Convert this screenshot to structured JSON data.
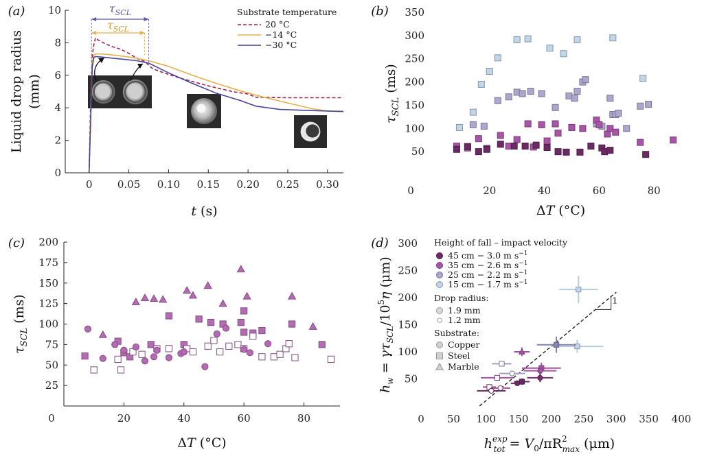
{
  "chart_data": [
    {
      "panel": "(a)",
      "type": "line",
      "xlabel": "t (s)",
      "ylabel_line1": "Liquid drop radius",
      "ylabel_line2": "(mm)",
      "xlim": [
        -0.03,
        0.32
      ],
      "ylim": [
        0,
        10
      ],
      "xticks": [
        "0",
        "0.05",
        "0.10",
        "0.15",
        "0.20",
        "0.25",
        "0.30"
      ],
      "xtick_values": [
        0,
        0.05,
        0.1,
        0.15,
        0.2,
        0.25,
        0.3
      ],
      "yticks": [
        0,
        2,
        4,
        6,
        8,
        10
      ],
      "legend_title": "Substrate temperature",
      "annotation_tau_outer": "τSCL",
      "annotation_tau_inner": "τSCL",
      "series": [
        {
          "name": "20 °C",
          "color": "#a0204f",
          "dash": true,
          "x": [
            0,
            0.002,
            0.004,
            0.006,
            0.008,
            0.012,
            0.02,
            0.03,
            0.04,
            0.05,
            0.06,
            0.07,
            0.08,
            0.1,
            0.12,
            0.15,
            0.18,
            0.2,
            0.21,
            0.25,
            0.3,
            0.32
          ],
          "y": [
            0,
            4.5,
            7.2,
            7.9,
            8.3,
            8.15,
            7.95,
            7.75,
            7.6,
            7.35,
            7.05,
            6.85,
            6.4,
            6.05,
            5.75,
            5.35,
            5.0,
            4.85,
            4.65,
            4.62,
            4.62,
            4.62
          ]
        },
        {
          "name": "−14 °C",
          "color": "#e3b04a",
          "dash": false,
          "x": [
            0,
            0.002,
            0.004,
            0.006,
            0.008,
            0.02,
            0.04,
            0.06,
            0.075,
            0.1,
            0.13,
            0.16,
            0.19,
            0.22,
            0.25,
            0.28,
            0.3,
            0.32
          ],
          "y": [
            0,
            3.5,
            6.8,
            7.25,
            7.32,
            7.3,
            7.2,
            7.05,
            6.9,
            6.55,
            6.0,
            5.5,
            5.05,
            4.65,
            4.3,
            3.95,
            3.8,
            3.75
          ]
        },
        {
          "name": "−30 °C",
          "color": "#44449a",
          "dash": false,
          "x": [
            0,
            0.002,
            0.004,
            0.006,
            0.008,
            0.02,
            0.04,
            0.06,
            0.075,
            0.1,
            0.13,
            0.16,
            0.19,
            0.21,
            0.24,
            0.27,
            0.3,
            0.32
          ],
          "y": [
            0,
            3.2,
            6.5,
            7.1,
            7.15,
            7.1,
            7.0,
            6.9,
            6.75,
            6.15,
            5.5,
            4.9,
            4.45,
            4.1,
            3.9,
            3.85,
            3.8,
            3.78
          ]
        }
      ]
    },
    {
      "panel": "(b)",
      "type": "scatter",
      "xlabel": "ΔT (°C)",
      "ylabel": "τSCL (ms)",
      "xlim": [
        0,
        92
      ],
      "ylim": [
        0,
        350
      ],
      "xticks": [
        20,
        40,
        60,
        80
      ],
      "yticks": [
        50,
        100,
        150,
        200,
        250,
        300,
        350
      ],
      "origin_label": "0",
      "series": [
        {
          "name": "15 cm",
          "color": "#c2d6ea",
          "points": [
            [
              9,
              102
            ],
            [
              14,
              135
            ],
            [
              17,
              195
            ],
            [
              20,
              223
            ],
            [
              23,
              252
            ],
            [
              30,
              291
            ],
            [
              34,
              293
            ],
            [
              42,
              273
            ],
            [
              47,
              261
            ],
            [
              52,
              291
            ],
            [
              65,
              295
            ],
            [
              76,
              208
            ]
          ]
        },
        {
          "name": "25 cm",
          "color": "#ada7cf",
          "points": [
            [
              14,
              108
            ],
            [
              18,
              105
            ],
            [
              23,
              160
            ],
            [
              27,
              168
            ],
            [
              30,
              178
            ],
            [
              32,
              175
            ],
            [
              35,
              180
            ],
            [
              39,
              175
            ],
            [
              44,
              145
            ],
            [
              49,
              170
            ],
            [
              51,
              165
            ],
            [
              52,
              180
            ],
            [
              54,
              200
            ],
            [
              55,
              205
            ],
            [
              59,
              110
            ],
            [
              61,
              105
            ],
            [
              64,
              165
            ],
            [
              65,
              130
            ],
            [
              66,
              130
            ],
            [
              67,
              133
            ],
            [
              70,
              100
            ],
            [
              75,
              148
            ],
            [
              78,
              152
            ]
          ]
        },
        {
          "name": "35 cm",
          "color": "#a855a8",
          "points": [
            [
              8,
              62
            ],
            [
              12,
              58
            ],
            [
              16,
              78
            ],
            [
              19,
              57
            ],
            [
              24,
              85
            ],
            [
              27,
              62
            ],
            [
              30,
              76
            ],
            [
              34,
              110
            ],
            [
              36,
              60
            ],
            [
              39,
              108
            ],
            [
              41,
              73
            ],
            [
              44,
              110
            ],
            [
              45,
              90
            ],
            [
              50,
              102
            ],
            [
              54,
              100
            ],
            [
              59,
              118
            ],
            [
              60,
              108
            ],
            [
              63,
              88
            ],
            [
              64,
              100
            ],
            [
              66,
              92
            ],
            [
              75,
              70
            ],
            [
              87,
              75
            ]
          ]
        },
        {
          "name": "45 cm",
          "color": "#6b2a63",
          "points": [
            [
              8,
              55
            ],
            [
              12,
              61
            ],
            [
              16,
              50
            ],
            [
              19,
              55
            ],
            [
              24,
              66
            ],
            [
              29,
              62
            ],
            [
              33,
              62
            ],
            [
              37,
              64
            ],
            [
              41,
              59
            ],
            [
              45,
              50
            ],
            [
              48,
              49
            ],
            [
              53,
              49
            ],
            [
              57,
              62
            ],
            [
              61,
              58
            ],
            [
              62,
              50
            ],
            [
              64,
              53
            ],
            [
              77,
              44
            ]
          ]
        }
      ]
    },
    {
      "panel": "(c)",
      "type": "scatter",
      "xlabel": "ΔT (°C)",
      "ylabel": "τSCL (ms)",
      "xlim": [
        0,
        92
      ],
      "ylim": [
        0,
        200
      ],
      "xticks": [
        20,
        40,
        60,
        80
      ],
      "yticks": [
        25,
        50,
        75,
        100,
        125,
        150,
        175,
        200
      ],
      "origin_label": "0",
      "color": "#b46bb4",
      "series": [
        {
          "name": "Marble",
          "shape": "triangle",
          "filled": true,
          "points": [
            [
              13,
              87
            ],
            [
              24,
              127
            ],
            [
              27,
              132
            ],
            [
              30,
              131
            ],
            [
              33,
              130
            ],
            [
              41,
              141
            ],
            [
              43,
              135
            ],
            [
              48,
              147
            ],
            [
              53,
              125
            ],
            [
              59,
              167
            ],
            [
              61,
              134
            ],
            [
              76,
              134
            ],
            [
              83,
              97
            ]
          ]
        },
        {
          "name": "Steel filled",
          "shape": "square",
          "filled": true,
          "points": [
            [
              7,
              61
            ],
            [
              18,
              79
            ],
            [
              20,
              65
            ],
            [
              22,
              60
            ],
            [
              29,
              75
            ],
            [
              35,
              110
            ],
            [
              40,
              75
            ],
            [
              45,
              106
            ],
            [
              49,
              102
            ],
            [
              53,
              100
            ],
            [
              59,
              102
            ],
            [
              60,
              116
            ],
            [
              60,
              90
            ],
            [
              63,
              89
            ],
            [
              66,
              92
            ],
            [
              76,
              100
            ],
            [
              86,
              75
            ]
          ]
        },
        {
          "name": "Steel open",
          "shape": "square",
          "filled": false,
          "points": [
            [
              10,
              44
            ],
            [
              18,
              57
            ],
            [
              19,
              44
            ],
            [
              23,
              66
            ],
            [
              26,
              63
            ],
            [
              31,
              70
            ],
            [
              35,
              70
            ],
            [
              41,
              70
            ],
            [
              43,
              66
            ],
            [
              48,
              73
            ],
            [
              50,
              80
            ],
            [
              52,
              66
            ],
            [
              55,
              73
            ],
            [
              58,
              75
            ],
            [
              60,
              70
            ],
            [
              63,
              85
            ],
            [
              66,
              60
            ],
            [
              70,
              60
            ],
            [
              72,
              63
            ],
            [
              74,
              70
            ],
            [
              75,
              76
            ],
            [
              77,
              59
            ],
            [
              89,
              57
            ]
          ]
        },
        {
          "name": "Copper",
          "shape": "circle",
          "filled": true,
          "points": [
            [
              8,
              94
            ],
            [
              13,
              58
            ],
            [
              17,
              75
            ],
            [
              20,
              68
            ],
            [
              24,
              72
            ],
            [
              27,
              55
            ],
            [
              30,
              60
            ],
            [
              31,
              68
            ],
            [
              35,
              59
            ],
            [
              39,
              64
            ],
            [
              40,
              66
            ],
            [
              47,
              48
            ],
            [
              51,
              88
            ],
            [
              54,
              95
            ],
            [
              60,
              69
            ],
            [
              62,
              65
            ],
            [
              68,
              76
            ]
          ]
        }
      ]
    },
    {
      "panel": "(d)",
      "type": "scatter",
      "xlabel": "h_tot^exp = V0/πR²max (μm)",
      "ylabel": "h_w = γτSCL/10⁵η (μm)",
      "xlim": [
        0,
        400
      ],
      "ylim": [
        0,
        300
      ],
      "xticks": [
        0,
        50,
        100,
        150,
        200,
        250,
        300,
        350,
        400
      ],
      "yticks": [
        50,
        100,
        150,
        200,
        250,
        300
      ],
      "legend_title": "Height of fall – impact velocity",
      "legend": [
        {
          "label": "45 cm − 3.0 m s",
          "sup": "−1",
          "color": "#6b2a63"
        },
        {
          "label": "35 cm − 2.6 m s",
          "sup": "−1",
          "color": "#a855a8"
        },
        {
          "label": "25 cm − 2.2 m s",
          "sup": "−1",
          "color": "#ada7cf"
        },
        {
          "label": "15 cm − 1.7 m s",
          "sup": "−1",
          "color": "#c2d6ea"
        }
      ],
      "radius_title": "Drop radius:",
      "radius_items": [
        "1.9 mm",
        "1.2 mm"
      ],
      "substrate_title": "Substrate:",
      "substrate_items": [
        "Copper",
        "Steel",
        "Marble"
      ],
      "slope_label": "1",
      "points": [
        {
          "x": 242,
          "y": 215,
          "xerr": 30,
          "yerr": 25,
          "color": "#c2d6ea",
          "shape": "square",
          "filled": true
        },
        {
          "x": 240,
          "y": 110,
          "xerr": 40,
          "yerr": 12,
          "color": "#c2d6ea",
          "shape": "square",
          "filled": true
        },
        {
          "x": 208,
          "y": 113,
          "xerr": 30,
          "yerr": 15,
          "color": "#8a85b8",
          "shape": "square",
          "filled": true
        },
        {
          "x": 185,
          "y": 70,
          "xerr": 30,
          "yerr": 10,
          "color": "#a855a8",
          "shape": "square",
          "filled": true
        },
        {
          "x": 183,
          "y": 65,
          "xerr": 25,
          "yerr": 10,
          "color": "#a855a8",
          "shape": "circle",
          "filled": true
        },
        {
          "x": 155,
          "y": 100,
          "xerr": 12,
          "yerr": 8,
          "color": "#a855a8",
          "shape": "triangle",
          "filled": true
        },
        {
          "x": 183,
          "y": 52,
          "xerr": 20,
          "yerr": 8,
          "color": "#7a3070",
          "shape": "circle",
          "filled": true
        },
        {
          "x": 155,
          "y": 45,
          "xerr": 12,
          "yerr": 6,
          "color": "#6b2a63",
          "shape": "square",
          "filled": true
        },
        {
          "x": 148,
          "y": 42,
          "xerr": 10,
          "yerr": 5,
          "color": "#6b2a63",
          "shape": "circle",
          "filled": true
        },
        {
          "x": 124,
          "y": 78,
          "xerr": 15,
          "yerr": 5,
          "color": "#ada7cf",
          "shape": "square",
          "filled": false
        },
        {
          "x": 140,
          "y": 60,
          "xerr": 20,
          "yerr": 5,
          "color": "#ada7cf",
          "shape": "circle",
          "filled": false
        },
        {
          "x": 117,
          "y": 52,
          "xerr": 25,
          "yerr": 5,
          "color": "#a855a8",
          "shape": "square",
          "filled": false
        },
        {
          "x": 105,
          "y": 35,
          "xerr": 10,
          "yerr": 4,
          "color": "#a855a8",
          "shape": "square",
          "filled": false
        },
        {
          "x": 122,
          "y": 33,
          "xerr": 15,
          "yerr": 4,
          "color": "#a855a8",
          "shape": "circle",
          "filled": false
        },
        {
          "x": 108,
          "y": 28,
          "xerr": 22,
          "yerr": 4,
          "color": "#6b2a63",
          "shape": "circle",
          "filled": false
        }
      ]
    }
  ]
}
